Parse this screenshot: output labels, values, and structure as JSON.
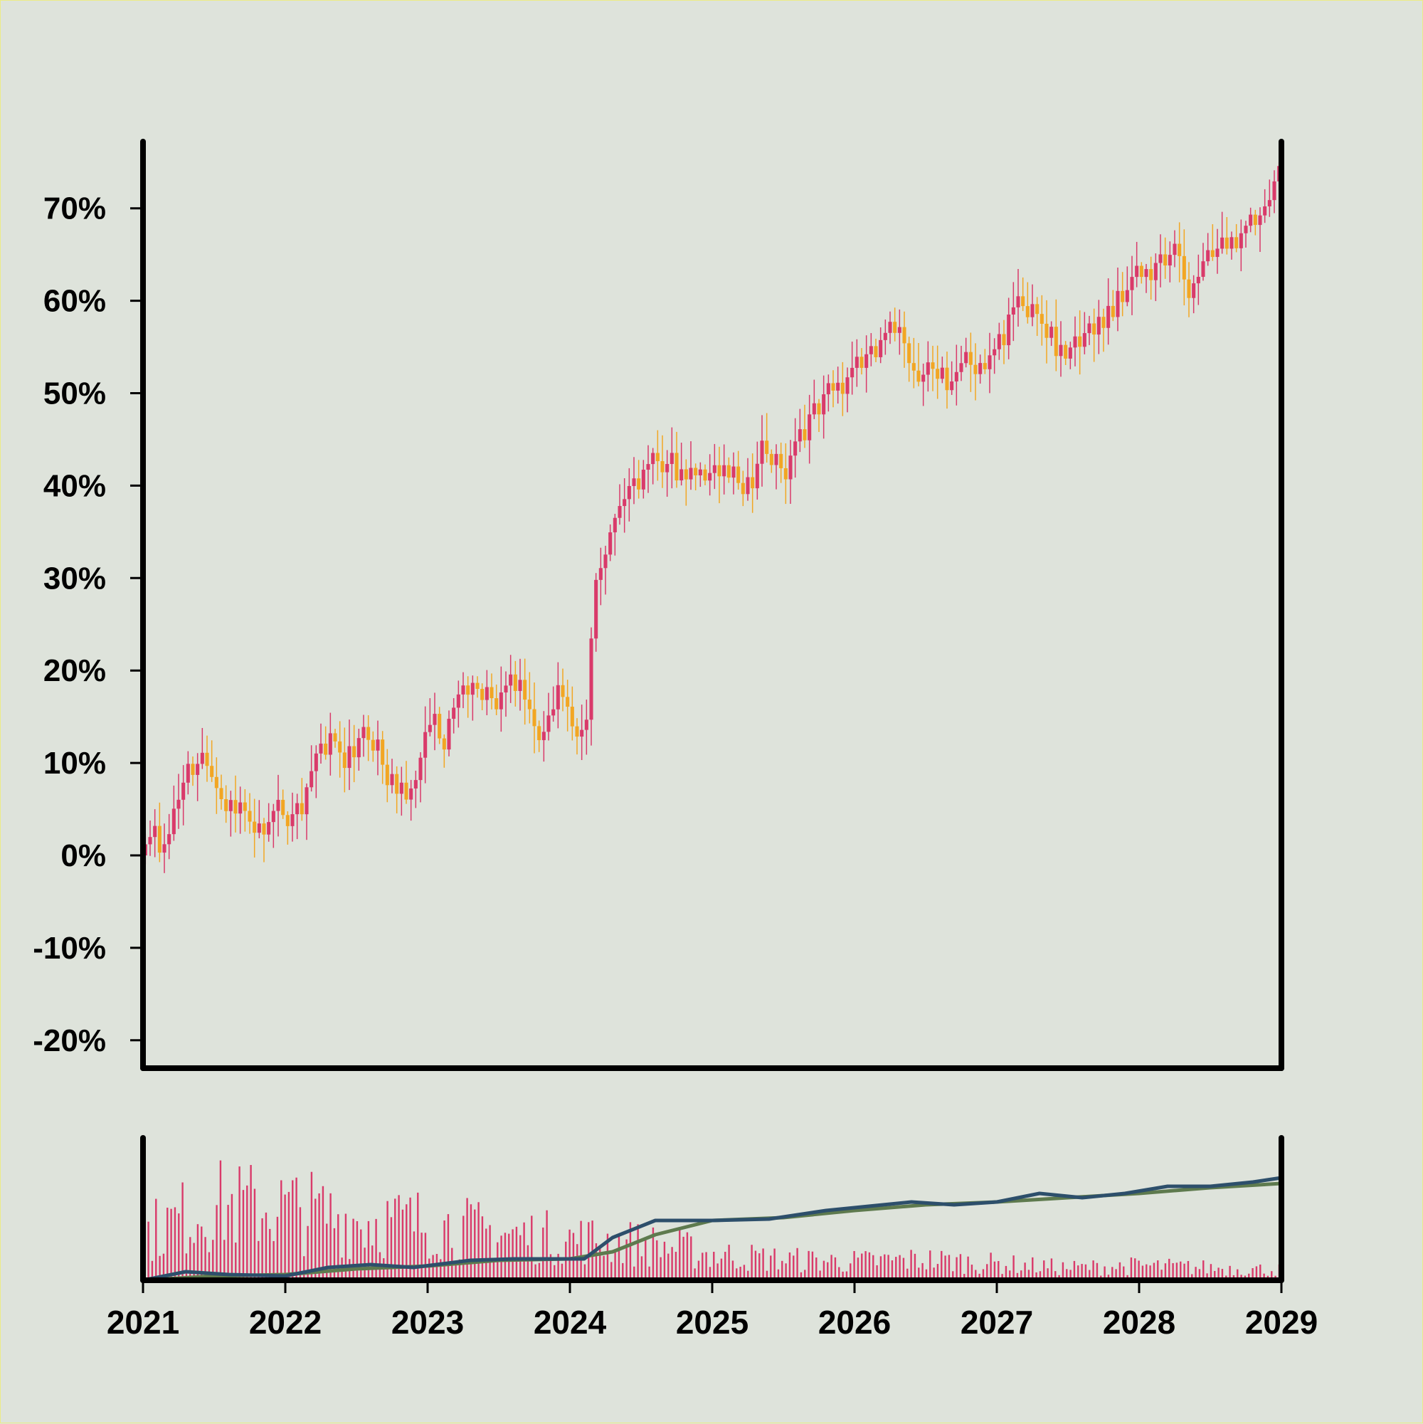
{
  "chart_data": {
    "type": "candlestick",
    "yaxis": {
      "unit": "%",
      "range": [
        -23,
        77
      ],
      "ticks": [
        -20,
        -10,
        0,
        10,
        20,
        30,
        40,
        50,
        60,
        70
      ],
      "tick_labels": [
        "-20%",
        "-10%",
        "0%",
        "10%",
        "20%",
        "30%",
        "40%",
        "50%",
        "60%",
        "70%"
      ]
    },
    "xaxis": {
      "range": [
        2021,
        2029
      ],
      "ticks": [
        2021,
        2022,
        2023,
        2024,
        2025,
        2026,
        2027,
        2028,
        2029
      ],
      "tick_labels": [
        "2021",
        "2022",
        "2023",
        "2024",
        "2025",
        "2026",
        "2027",
        "2028",
        "2029"
      ]
    },
    "colors": {
      "background": "#DEE3DB",
      "border": "#ECEC86",
      "up": "#D93A6A",
      "down": "#F2A623",
      "axis": "#000000",
      "ma_short": "#2D4F6B",
      "ma_long": "#5E7A4E",
      "volume": "#D93A6A"
    },
    "price_path": [
      [
        2021.0,
        0
      ],
      [
        2021.06,
        2
      ],
      [
        2021.12,
        0
      ],
      [
        2021.25,
        6
      ],
      [
        2021.33,
        10
      ],
      [
        2021.5,
        10
      ],
      [
        2021.58,
        5
      ],
      [
        2021.75,
        4
      ],
      [
        2022.0,
        4
      ],
      [
        2022.12,
        6
      ],
      [
        2022.25,
        12
      ],
      [
        2022.33,
        13
      ],
      [
        2022.42,
        10
      ],
      [
        2022.5,
        13
      ],
      [
        2022.6,
        12
      ],
      [
        2022.75,
        7
      ],
      [
        2022.88,
        6
      ],
      [
        2023.0,
        14
      ],
      [
        2023.12,
        13
      ],
      [
        2023.25,
        18
      ],
      [
        2023.5,
        18
      ],
      [
        2023.65,
        18
      ],
      [
        2023.8,
        12
      ],
      [
        2023.92,
        18
      ],
      [
        2024.05,
        13
      ],
      [
        2024.12,
        15
      ],
      [
        2024.17,
        30
      ],
      [
        2024.25,
        33
      ],
      [
        2024.33,
        37
      ],
      [
        2024.42,
        40
      ],
      [
        2024.6,
        43
      ],
      [
        2024.75,
        41
      ],
      [
        2025.0,
        42
      ],
      [
        2025.15,
        40
      ],
      [
        2025.3,
        42
      ],
      [
        2025.35,
        45
      ],
      [
        2025.5,
        41
      ],
      [
        2025.6,
        45
      ],
      [
        2025.75,
        49
      ],
      [
        2025.9,
        51
      ],
      [
        2026.05,
        54
      ],
      [
        2026.2,
        56
      ],
      [
        2026.3,
        58
      ],
      [
        2026.4,
        52
      ],
      [
        2026.55,
        53
      ],
      [
        2026.65,
        50
      ],
      [
        2026.75,
        53
      ],
      [
        2026.9,
        52
      ],
      [
        2027.0,
        56
      ],
      [
        2027.1,
        59
      ],
      [
        2027.25,
        60
      ],
      [
        2027.4,
        55
      ],
      [
        2027.5,
        53
      ],
      [
        2027.6,
        56
      ],
      [
        2027.75,
        59
      ],
      [
        2027.85,
        61
      ],
      [
        2027.95,
        62
      ],
      [
        2028.05,
        64
      ],
      [
        2028.2,
        65
      ],
      [
        2028.3,
        64
      ],
      [
        2028.35,
        60
      ],
      [
        2028.45,
        64
      ],
      [
        2028.55,
        65
      ],
      [
        2028.65,
        67
      ],
      [
        2028.8,
        68
      ],
      [
        2028.9,
        70
      ],
      [
        2029.0,
        76
      ]
    ],
    "moving_averages": {
      "short": [
        [
          2021.0,
          0.0
        ],
        [
          2021.3,
          0.06
        ],
        [
          2021.6,
          0.04
        ],
        [
          2022.0,
          0.03
        ],
        [
          2022.3,
          0.09
        ],
        [
          2022.6,
          0.11
        ],
        [
          2022.9,
          0.09
        ],
        [
          2023.3,
          0.14
        ],
        [
          2023.6,
          0.15
        ],
        [
          2023.9,
          0.15
        ],
        [
          2024.1,
          0.15
        ],
        [
          2024.3,
          0.3
        ],
        [
          2024.6,
          0.42
        ],
        [
          2025.0,
          0.42
        ],
        [
          2025.4,
          0.43
        ],
        [
          2025.8,
          0.49
        ],
        [
          2026.1,
          0.52
        ],
        [
          2026.4,
          0.55
        ],
        [
          2026.7,
          0.53
        ],
        [
          2027.0,
          0.55
        ],
        [
          2027.3,
          0.61
        ],
        [
          2027.6,
          0.58
        ],
        [
          2027.9,
          0.61
        ],
        [
          2028.2,
          0.66
        ],
        [
          2028.5,
          0.66
        ],
        [
          2028.8,
          0.69
        ],
        [
          2029.0,
          0.72
        ]
      ],
      "long": [
        [
          2021.0,
          0.0
        ],
        [
          2021.5,
          0.03
        ],
        [
          2022.0,
          0.04
        ],
        [
          2022.5,
          0.08
        ],
        [
          2023.0,
          0.1
        ],
        [
          2023.5,
          0.14
        ],
        [
          2024.0,
          0.15
        ],
        [
          2024.3,
          0.2
        ],
        [
          2024.6,
          0.32
        ],
        [
          2025.0,
          0.42
        ],
        [
          2025.5,
          0.44
        ],
        [
          2026.0,
          0.49
        ],
        [
          2026.5,
          0.53
        ],
        [
          2027.0,
          0.55
        ],
        [
          2027.5,
          0.58
        ],
        [
          2028.0,
          0.61
        ],
        [
          2028.5,
          0.65
        ],
        [
          2029.0,
          0.68
        ]
      ]
    },
    "volume_profile": [
      [
        2021.0,
        0.45
      ],
      [
        2021.5,
        0.72
      ],
      [
        2022.0,
        0.7
      ],
      [
        2022.5,
        0.58
      ],
      [
        2023.0,
        0.55
      ],
      [
        2023.5,
        0.45
      ],
      [
        2024.0,
        0.4
      ],
      [
        2024.3,
        0.38
      ],
      [
        2024.7,
        0.32
      ],
      [
        2025.0,
        0.25
      ],
      [
        2025.5,
        0.2
      ],
      [
        2026.0,
        0.18
      ],
      [
        2026.5,
        0.2
      ],
      [
        2027.0,
        0.16
      ],
      [
        2027.5,
        0.12
      ],
      [
        2028.0,
        0.14
      ],
      [
        2028.5,
        0.12
      ],
      [
        2029.0,
        0.1
      ]
    ]
  }
}
